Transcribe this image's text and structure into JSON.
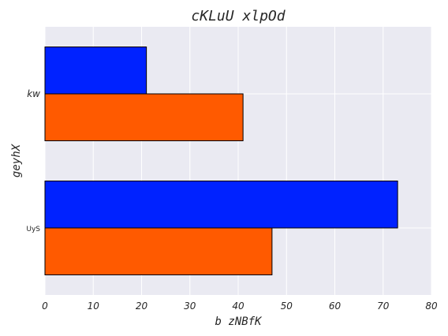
{
  "chart_data": {
    "type": "bar",
    "orientation": "horizontal",
    "title": "cKLuU xlpOd",
    "xlabel": "b zNBfK",
    "ylabel": "geyhX",
    "categories": [
      "kw",
      "UyS"
    ],
    "series": [
      {
        "values": [
          21,
          73
        ],
        "color": "#0022ff"
      },
      {
        "values": [
          41,
          47
        ],
        "color": "#ff5a00"
      }
    ],
    "xlim": [
      0,
      80
    ],
    "xticks": [
      "0",
      "10",
      "20",
      "30",
      "40",
      "50",
      "60",
      "70",
      "80"
    ],
    "grid": true,
    "background": "#eaeaf2"
  }
}
